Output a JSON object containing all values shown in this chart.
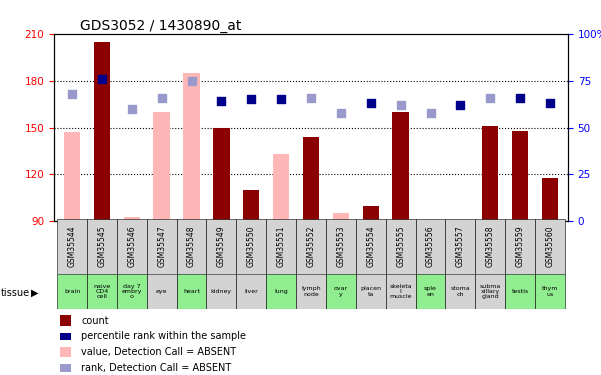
{
  "title": "GDS3052 / 1430890_at",
  "samples": [
    "GSM35544",
    "GSM35545",
    "GSM35546",
    "GSM35547",
    "GSM35548",
    "GSM35549",
    "GSM35550",
    "GSM35551",
    "GSM35552",
    "GSM35553",
    "GSM35554",
    "GSM35555",
    "GSM35556",
    "GSM35557",
    "GSM35558",
    "GSM35559",
    "GSM35560"
  ],
  "tissues": [
    "brain",
    "naive\nCD4\ncell",
    "day 7\nembry\no",
    "eye",
    "heart",
    "kidney",
    "liver",
    "lung",
    "lymph\nnode",
    "ovar\ny",
    "placen\nta",
    "skeleta\nl\nmuscle",
    "sple\nen",
    "stoma\nch",
    "subma\nxillary\ngland",
    "testis",
    "thym\nus"
  ],
  "tissue_colors": [
    "#90ee90",
    "#90ee90",
    "#90ee90",
    "#d3d3d3",
    "#90ee90",
    "#d3d3d3",
    "#d3d3d3",
    "#90ee90",
    "#d3d3d3",
    "#90ee90",
    "#d3d3d3",
    "#d3d3d3",
    "#90ee90",
    "#d3d3d3",
    "#d3d3d3",
    "#90ee90",
    "#90ee90"
  ],
  "bar_values": [
    147,
    205,
    93,
    160,
    185,
    150,
    110,
    133,
    144,
    95,
    100,
    160,
    88,
    88,
    151,
    148,
    118
  ],
  "bar_is_absent": [
    true,
    false,
    true,
    true,
    true,
    false,
    false,
    true,
    false,
    true,
    false,
    false,
    true,
    true,
    false,
    false,
    false
  ],
  "rank_values": [
    68,
    76,
    60,
    66,
    75,
    64,
    65,
    65,
    66,
    58,
    63,
    62,
    58,
    62,
    66,
    66,
    63
  ],
  "rank_is_absent": [
    true,
    false,
    true,
    true,
    true,
    false,
    false,
    false,
    true,
    true,
    false,
    true,
    true,
    false,
    true,
    false,
    false
  ],
  "ylim_left": [
    90,
    210
  ],
  "ylim_right": [
    0,
    100
  ],
  "yticks_left": [
    90,
    120,
    150,
    180,
    210
  ],
  "yticks_right": [
    0,
    25,
    50,
    75,
    100
  ],
  "grid_lines": [
    120,
    150,
    180
  ],
  "bar_color_present": "#8B0000",
  "bar_color_absent": "#FFB6B6",
  "rank_color_present": "#00008B",
  "rank_color_absent": "#9999CC",
  "legend_items": [
    "count",
    "percentile rank within the sample",
    "value, Detection Call = ABSENT",
    "rank, Detection Call = ABSENT"
  ],
  "legend_colors": [
    "#8B0000",
    "#00008B",
    "#FFB6B6",
    "#9999CC"
  ]
}
